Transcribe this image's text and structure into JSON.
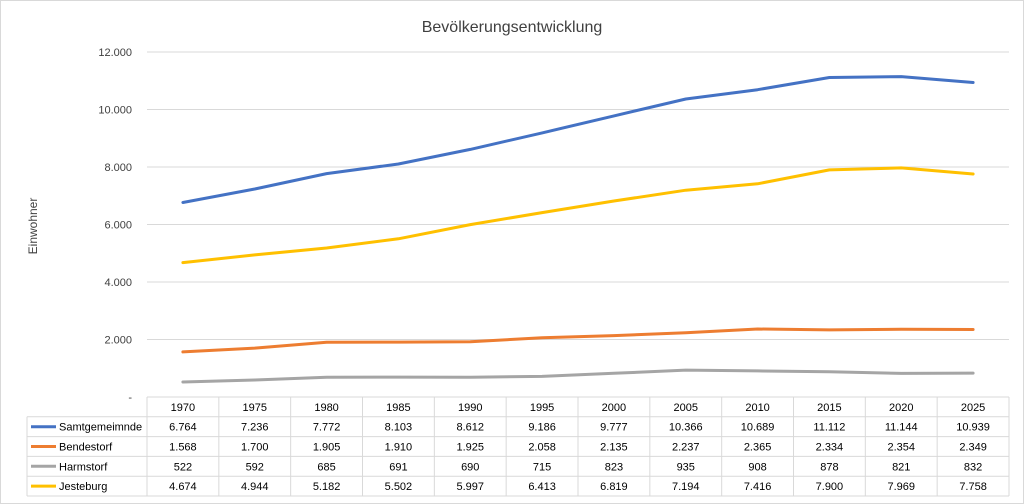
{
  "chart_data": {
    "type": "line",
    "title": "Bevölkerungsentwicklung",
    "ylabel": "Einwohner",
    "ylim": [
      0,
      12000
    ],
    "ytick_labels": [
      "-",
      "2.000",
      "4.000",
      "6.000",
      "8.000",
      "10.000",
      "12.000"
    ],
    "ytick_values": [
      0,
      2000,
      4000,
      6000,
      8000,
      10000,
      12000
    ],
    "grid": true,
    "legend": "data-table",
    "categories": [
      "1970",
      "1975",
      "1980",
      "1985",
      "1990",
      "1995",
      "2000",
      "2005",
      "2010",
      "2015",
      "2020",
      "2025"
    ],
    "series": [
      {
        "name": "Samtgemeimnde",
        "color": "#4472c4",
        "values": [
          6764,
          7236,
          7772,
          8103,
          8612,
          9186,
          9777,
          10366,
          10689,
          11112,
          11144,
          10939
        ],
        "labels": [
          "6.764",
          "7.236",
          "7.772",
          "8.103",
          "8.612",
          "9.186",
          "9.777",
          "10.366",
          "10.689",
          "11.112",
          "11.144",
          "10.939"
        ]
      },
      {
        "name": "Bendestorf",
        "color": "#ed7d31",
        "values": [
          1568,
          1700,
          1905,
          1910,
          1925,
          2058,
          2135,
          2237,
          2365,
          2334,
          2354,
          2349
        ],
        "labels": [
          "1.568",
          "1.700",
          "1.905",
          "1.910",
          "1.925",
          "2.058",
          "2.135",
          "2.237",
          "2.365",
          "2.334",
          "2.354",
          "2.349"
        ]
      },
      {
        "name": "Harmstorf",
        "color": "#a5a5a5",
        "values": [
          522,
          592,
          685,
          691,
          690,
          715,
          823,
          935,
          908,
          878,
          821,
          832
        ],
        "labels": [
          "522",
          "592",
          "685",
          "691",
          "690",
          "715",
          "823",
          "935",
          "908",
          "878",
          "821",
          "832"
        ]
      },
      {
        "name": "Jesteburg",
        "color": "#ffc000",
        "values": [
          4674,
          4944,
          5182,
          5502,
          5997,
          6413,
          6819,
          7194,
          7416,
          7900,
          7969,
          7758
        ],
        "labels": [
          "4.674",
          "4.944",
          "5.182",
          "5.502",
          "5.997",
          "6.413",
          "6.819",
          "7.194",
          "7.416",
          "7.900",
          "7.969",
          "7.758"
        ]
      }
    ]
  }
}
